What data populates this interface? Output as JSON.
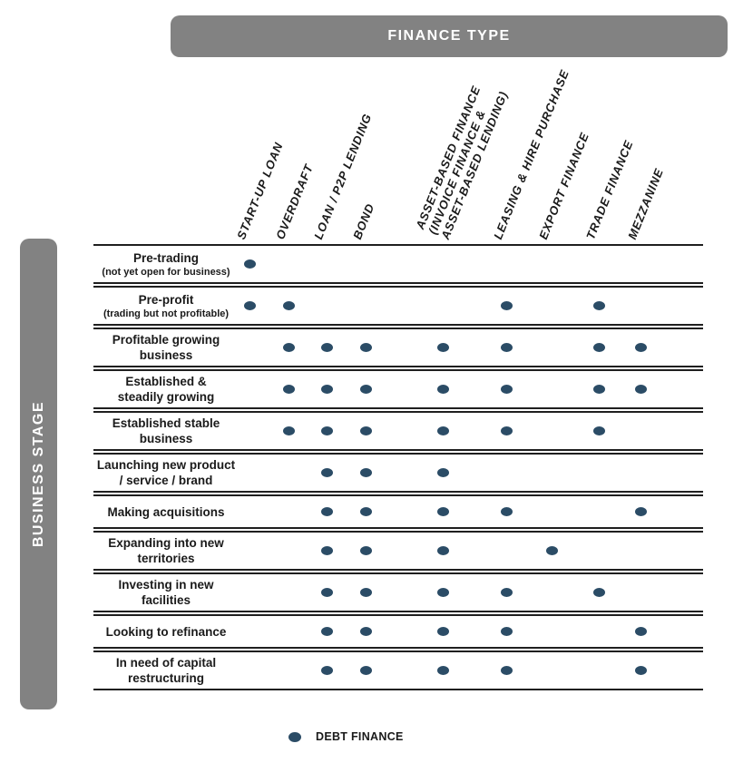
{
  "header": {
    "title": "FINANCE TYPE"
  },
  "side": {
    "title": "BUSINESS STAGE"
  },
  "legend": {
    "label": "DEBT FINANCE",
    "marker": "debt-finance-dot"
  },
  "colors": {
    "dot": "#2b4c66",
    "bar_gray": "#828282",
    "line": "#1f1f1f",
    "text": "#1a1a1a"
  },
  "chart_data": {
    "type": "table",
    "title": "FINANCE TYPE",
    "row_axis_label": "BUSINESS STAGE",
    "legend": "DEBT FINANCE",
    "columns": [
      [
        "START-UP LOAN"
      ],
      [
        "OVERDRAFT"
      ],
      [
        "LOAN / P2P LENDING"
      ],
      [
        "BOND"
      ],
      [
        "ASSET-BASED FINANCE",
        "(INVOICE FINANCE &",
        "ASSET-BASED LENDING)"
      ],
      [
        "LEASING & HIRE PURCHASE"
      ],
      [
        "EXPORT FINANCE"
      ],
      [
        "TRADE FINANCE"
      ],
      [
        "MEZZANINE"
      ]
    ],
    "rows": [
      {
        "label_lines": [
          "Pre-trading"
        ],
        "sub_lines": [
          "(not yet open for business)"
        ],
        "dots": [
          1,
          0,
          0,
          0,
          0,
          0,
          0,
          0,
          0
        ]
      },
      {
        "label_lines": [
          "Pre-profit"
        ],
        "sub_lines": [
          "(trading but not profitable)"
        ],
        "dots": [
          1,
          1,
          0,
          0,
          0,
          1,
          0,
          1,
          0
        ]
      },
      {
        "label_lines": [
          "Profitable growing",
          "business"
        ],
        "sub_lines": [],
        "dots": [
          0,
          1,
          1,
          1,
          1,
          1,
          0,
          1,
          1
        ]
      },
      {
        "label_lines": [
          "Established &",
          "steadily growing"
        ],
        "sub_lines": [],
        "dots": [
          0,
          1,
          1,
          1,
          1,
          1,
          0,
          1,
          1
        ]
      },
      {
        "label_lines": [
          "Established stable",
          "business"
        ],
        "sub_lines": [],
        "dots": [
          0,
          1,
          1,
          1,
          1,
          1,
          0,
          1,
          0
        ]
      },
      {
        "label_lines": [
          "Launching new product",
          "/ service / brand"
        ],
        "sub_lines": [],
        "dots": [
          0,
          0,
          1,
          1,
          1,
          0,
          0,
          0,
          0
        ]
      },
      {
        "label_lines": [
          "Making acquisitions"
        ],
        "sub_lines": [],
        "dots": [
          0,
          0,
          1,
          1,
          1,
          1,
          0,
          0,
          1
        ]
      },
      {
        "label_lines": [
          "Expanding into new",
          "territories"
        ],
        "sub_lines": [],
        "dots": [
          0,
          0,
          1,
          1,
          1,
          0,
          1,
          0,
          0
        ]
      },
      {
        "label_lines": [
          "Investing in new",
          "facilities"
        ],
        "sub_lines": [],
        "dots": [
          0,
          0,
          1,
          1,
          1,
          1,
          0,
          1,
          0
        ]
      },
      {
        "label_lines": [
          "Looking to refinance"
        ],
        "sub_lines": [],
        "dots": [
          0,
          0,
          1,
          1,
          1,
          1,
          0,
          0,
          1
        ]
      },
      {
        "label_lines": [
          "In need of capital",
          "restructuring"
        ],
        "sub_lines": [],
        "dots": [
          0,
          0,
          1,
          1,
          1,
          1,
          0,
          0,
          1
        ]
      }
    ]
  }
}
